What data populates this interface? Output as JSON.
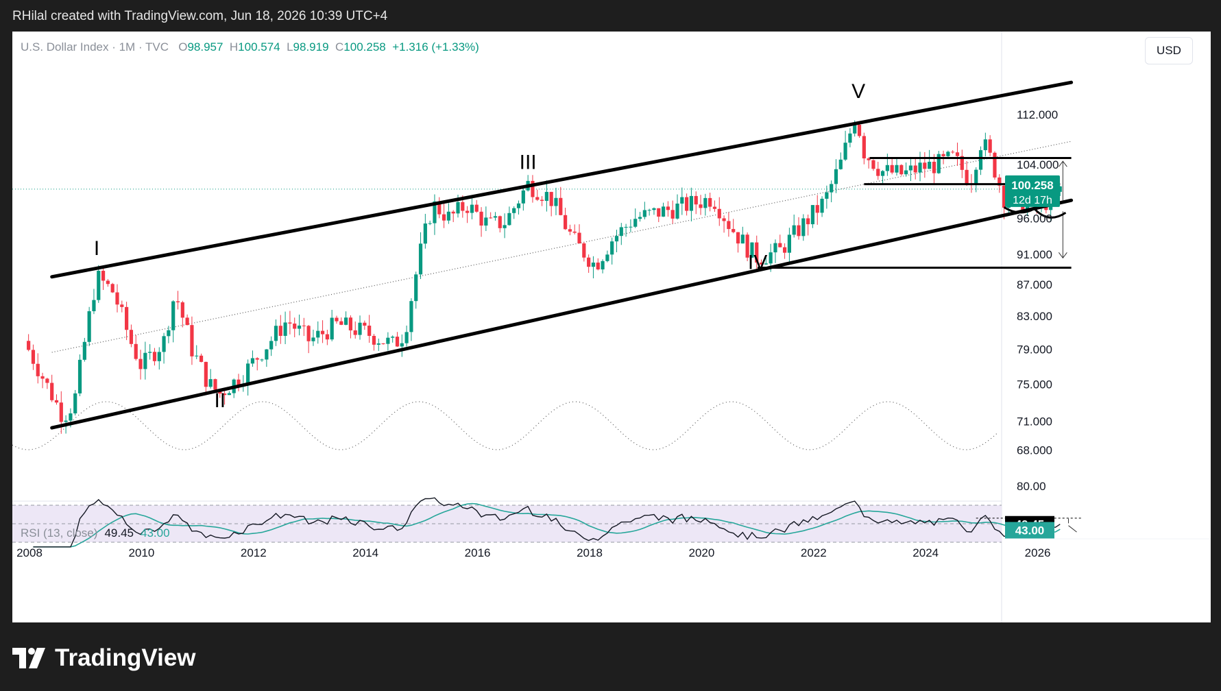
{
  "header": {
    "caption": "RHilal created with TradingView.com, Jun 18, 2026 10:39 UTC+4"
  },
  "legend": {
    "symbol": "U.S. Dollar Index · 1M · TVC",
    "open_label": "O",
    "open": "98.957",
    "high_label": "H",
    "high": "100.574",
    "low_label": "L",
    "low": "98.919",
    "close_label": "C",
    "close": "100.258",
    "change": "+1.316 (+1.33%)"
  },
  "currency_button": "USD",
  "price_tag": {
    "value": "100.258",
    "countdown": "12d 17h"
  },
  "rsi": {
    "label": "RSI (13, close)",
    "value": "49.45",
    "ma": "43.00"
  },
  "colors": {
    "up": "#089981",
    "down": "#f23645",
    "rsi_line": "#131722",
    "rsi_ma": "#26a69a",
    "rsi_band": "#ede7f6"
  },
  "footer": {
    "brand": "TradingView"
  },
  "chart_data": {
    "type": "candlestick",
    "interval": "1M",
    "x_ticks": [
      "2008",
      "2010",
      "2012",
      "2014",
      "2016",
      "2018",
      "2020",
      "2022",
      "2024",
      "2026"
    ],
    "y_ticks": [
      "112.000",
      "104.000",
      "96.000",
      "91.000",
      "87.000",
      "83.000",
      "79.000",
      "75.000",
      "71.000",
      "68.000"
    ],
    "scale": "log",
    "ylim": [
      66,
      118
    ],
    "wave_labels": [
      {
        "text": "I",
        "date": 2009.2,
        "price": 90.9
      },
      {
        "text": "II",
        "date": 2011.4,
        "price": 72.5
      },
      {
        "text": "III",
        "date": 2016.9,
        "price": 103.3
      },
      {
        "text": "IV",
        "date": 2021.0,
        "price": 89.0
      },
      {
        "text": "V",
        "date": 2022.8,
        "price": 114.8
      }
    ],
    "channel": {
      "upper": [
        [
          2008.4,
          88.0
        ],
        [
          2026.6,
          117.5
        ]
      ],
      "lower": [
        [
          2008.4,
          70.3
        ],
        [
          2026.6,
          98.6
        ]
      ]
    },
    "horizontal_levels": [
      {
        "from": 2023.0,
        "to": 2026.6,
        "price": 105.0
      },
      {
        "from": 2022.9,
        "to": 2026.4,
        "price": 101.0
      },
      {
        "from": 2021.0,
        "to": 2026.6,
        "price": 89.2
      }
    ],
    "rsi_levels": {
      "upper_axis_label": "80.00",
      "band": [
        30,
        70
      ]
    },
    "rsi_current": 49.45,
    "rsi_ma_current": 43.0,
    "anchors": [
      [
        2007.9,
        80.0
      ],
      [
        2008.3,
        75.0
      ],
      [
        2008.6,
        71.5
      ],
      [
        2008.8,
        73.0
      ],
      [
        2008.95,
        78.5
      ],
      [
        2009.2,
        88.0
      ],
      [
        2009.5,
        86.0
      ],
      [
        2009.8,
        80.0
      ],
      [
        2010.0,
        77.0
      ],
      [
        2010.4,
        80.0
      ],
      [
        2010.6,
        86.0
      ],
      [
        2010.9,
        79.0
      ],
      [
        2011.2,
        75.0
      ],
      [
        2011.4,
        74.0
      ],
      [
        2011.8,
        76.0
      ],
      [
        2012.3,
        80.0
      ],
      [
        2012.6,
        82.5
      ],
      [
        2013.0,
        80.0
      ],
      [
        2013.5,
        82.0
      ],
      [
        2014.0,
        81.0
      ],
      [
        2014.5,
        79.5
      ],
      [
        2014.7,
        81.0
      ],
      [
        2015.0,
        92.0
      ],
      [
        2015.2,
        98.0
      ],
      [
        2015.5,
        96.0
      ],
      [
        2015.8,
        98.0
      ],
      [
        2016.2,
        95.0
      ],
      [
        2016.5,
        95.5
      ],
      [
        2016.9,
        101.0
      ],
      [
        2017.3,
        99.0
      ],
      [
        2017.7,
        93.0
      ],
      [
        2018.1,
        89.5
      ],
      [
        2018.4,
        93.0
      ],
      [
        2018.8,
        96.0
      ],
      [
        2019.3,
        97.0
      ],
      [
        2019.8,
        98.0
      ],
      [
        2020.2,
        99.0
      ],
      [
        2020.5,
        95.0
      ],
      [
        2020.8,
        92.0
      ],
      [
        2021.0,
        90.5
      ],
      [
        2021.4,
        91.5
      ],
      [
        2021.8,
        95.0
      ],
      [
        2022.2,
        98.5
      ],
      [
        2022.5,
        104.5
      ],
      [
        2022.75,
        112.0
      ],
      [
        2022.9,
        106.0
      ],
      [
        2023.2,
        103.0
      ],
      [
        2023.6,
        102.5
      ],
      [
        2023.9,
        103.5
      ],
      [
        2024.2,
        104.0
      ],
      [
        2024.5,
        105.0
      ],
      [
        2024.8,
        101.5
      ],
      [
        2025.0,
        108.0
      ],
      [
        2025.2,
        104.0
      ],
      [
        2025.4,
        99.0
      ],
      [
        2025.6,
        98.0
      ],
      [
        2025.8,
        98.5
      ],
      [
        2026.0,
        98.0
      ],
      [
        2026.2,
        98.5
      ],
      [
        2026.45,
        100.258
      ]
    ]
  }
}
